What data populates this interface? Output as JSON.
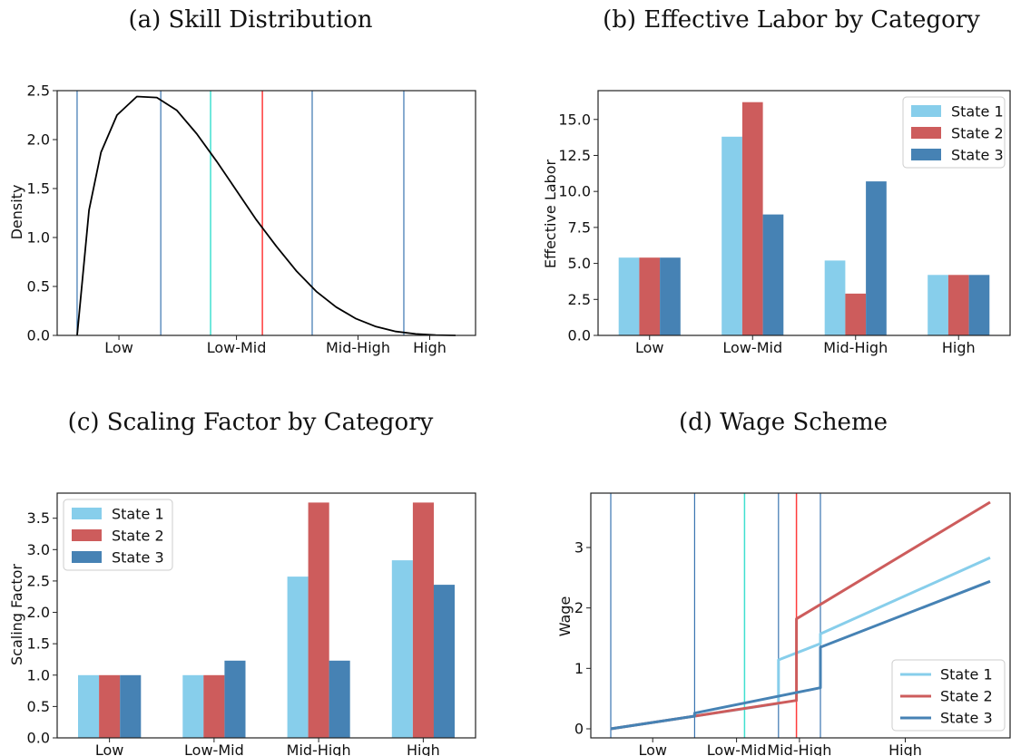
{
  "colors": {
    "state1": "#87CEEB",
    "state2": "#CD5C5C",
    "state3": "#4682B4",
    "cyan": "#40E0D0",
    "red": "#FF3B3B",
    "boundary": "#3A75B0",
    "curve": "#000000"
  },
  "legend": [
    "State 1",
    "State 2",
    "State 3"
  ],
  "chart_data": [
    {
      "type": "line",
      "title": "(a) Skill Distribution",
      "xlabel": "",
      "ylabel": "Density",
      "categories": [
        "Low",
        "Low-Mid",
        "Mid-High",
        "High"
      ],
      "ylim": [
        0,
        2.5
      ],
      "yticks": [
        "0.0",
        "0.5",
        "1.0",
        "1.5",
        "2.0",
        "2.5"
      ],
      "xlim": [
        -0.05,
        1.0
      ],
      "x": [
        0,
        0.03,
        0.06,
        0.1,
        0.15,
        0.2,
        0.25,
        0.3,
        0.35,
        0.4,
        0.45,
        0.5,
        0.55,
        0.6,
        0.65,
        0.7,
        0.75,
        0.8,
        0.85,
        0.9,
        0.95
      ],
      "y": [
        0,
        1.28,
        1.87,
        2.25,
        2.44,
        2.43,
        2.3,
        2.06,
        1.78,
        1.48,
        1.18,
        0.91,
        0.66,
        0.45,
        0.29,
        0.17,
        0.09,
        0.04,
        0.015,
        0.004,
        0.0
      ],
      "boundaries": [
        0.0,
        0.21,
        0.59,
        0.82
      ],
      "vlines": [
        {
          "x": 0.335,
          "color": "cyan"
        },
        {
          "x": 0.465,
          "color": "red"
        }
      ],
      "grid": false
    },
    {
      "type": "bar",
      "title": "(b) Effective Labor by Category",
      "xlabel": "",
      "ylabel": "Effective Labor",
      "categories": [
        "Low",
        "Low-Mid",
        "Mid-High",
        "High"
      ],
      "ylim": [
        0,
        17.0
      ],
      "yticks": [
        "0.0",
        "2.5",
        "5.0",
        "7.5",
        "10.0",
        "12.5",
        "15.0"
      ],
      "series": [
        {
          "name": "State 1",
          "values": [
            5.4,
            13.8,
            5.2,
            4.2
          ]
        },
        {
          "name": "State 2",
          "values": [
            5.4,
            16.2,
            2.9,
            4.2
          ]
        },
        {
          "name": "State 3",
          "values": [
            5.4,
            8.4,
            10.7,
            4.2
          ]
        }
      ],
      "legend_position": "top-right",
      "grid": false
    },
    {
      "type": "bar",
      "title": "(c) Scaling Factor by Category",
      "xlabel": "",
      "ylabel": "Scaling Factor",
      "categories": [
        "Low",
        "Low-Mid",
        "Mid-High",
        "High"
      ],
      "ylim": [
        0,
        3.9
      ],
      "yticks": [
        "0.0",
        "0.5",
        "1.0",
        "1.5",
        "2.0",
        "2.5",
        "3.0",
        "3.5"
      ],
      "series": [
        {
          "name": "State 1",
          "values": [
            1.0,
            1.0,
            2.57,
            2.83
          ]
        },
        {
          "name": "State 2",
          "values": [
            1.0,
            1.0,
            3.75,
            3.75
          ]
        },
        {
          "name": "State 3",
          "values": [
            1.0,
            1.23,
            1.23,
            2.44
          ]
        }
      ],
      "legend_position": "top-left",
      "grid": false
    },
    {
      "type": "line",
      "title": "(d) Wage Scheme",
      "xlabel": "",
      "ylabel": "Wage",
      "categories": [
        "Low",
        "Low-Mid",
        "Mid-High",
        "High"
      ],
      "ylim": [
        -0.15,
        3.9
      ],
      "yticks": [
        "0",
        "1",
        "2",
        "3"
      ],
      "xlim": [
        -0.05,
        1.0
      ],
      "boundaries": [
        0.0,
        0.21,
        0.42,
        0.525
      ],
      "vlines": [
        {
          "x": 0.335,
          "color": "cyan"
        },
        {
          "x": 0.465,
          "color": "red"
        }
      ],
      "series": [
        {
          "name": "State 1",
          "x": [
            0,
            0.21,
            0.42,
            0.42,
            0.525,
            0.525,
            0.95
          ],
          "y": [
            0,
            0.21,
            0.42,
            1.14,
            1.41,
            1.57,
            2.83
          ]
        },
        {
          "name": "State 2",
          "x": [
            0,
            0.21,
            0.465,
            0.465,
            0.95
          ],
          "y": [
            0,
            0.21,
            0.47,
            1.82,
            3.75
          ]
        },
        {
          "name": "State 3",
          "x": [
            0,
            0.21,
            0.21,
            0.525,
            0.525,
            0.95
          ],
          "y": [
            0,
            0.21,
            0.26,
            0.68,
            1.35,
            2.44
          ]
        }
      ],
      "legend_position": "bottom-right",
      "grid": false
    }
  ]
}
